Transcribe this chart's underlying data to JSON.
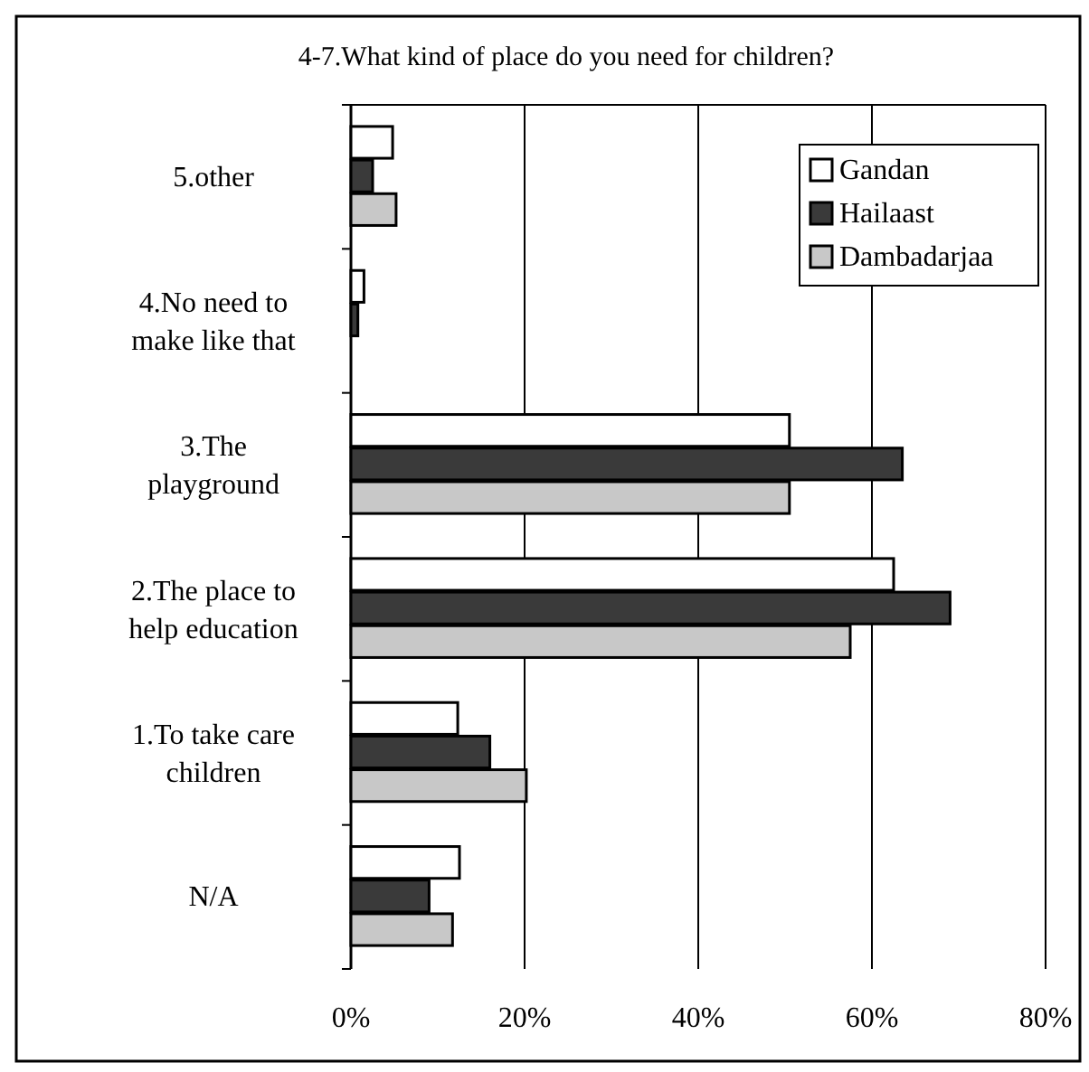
{
  "chart_data": {
    "type": "bar",
    "orientation": "horizontal",
    "title": "4-7.What kind of place do you need for children?",
    "categories": [
      "5.other",
      "4.No need to make like that",
      "3.The playground",
      "2.The place to help education",
      "1.To take care children",
      "N/A"
    ],
    "series": [
      {
        "name": "Gandan",
        "color": "#ffffff",
        "values": [
          4.8,
          1.5,
          50.5,
          62.5,
          12.3,
          12.5
        ]
      },
      {
        "name": "Hailaast",
        "color": "#3a3a3a",
        "values": [
          2.5,
          0.8,
          63.5,
          69,
          16,
          9
        ]
      },
      {
        "name": "Dambadarjaa",
        "color": "#c8c8c8",
        "values": [
          5.2,
          0,
          50.5,
          57.5,
          20.2,
          11.7
        ]
      }
    ],
    "xlim": [
      0,
      80
    ],
    "xticks": [
      {
        "value": 0,
        "label": "0%"
      },
      {
        "value": 20,
        "label": "20%"
      },
      {
        "value": 40,
        "label": "40%"
      },
      {
        "value": 60,
        "label": "60%"
      },
      {
        "value": 80,
        "label": "80%"
      }
    ],
    "grid": "x",
    "legend": "top right"
  }
}
